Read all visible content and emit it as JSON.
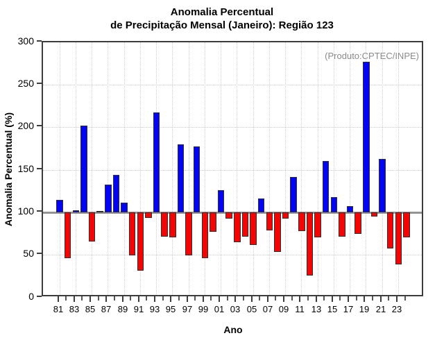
{
  "title": {
    "line1": "Anomalia Percentual",
    "line2": "de Precipitação Mensal (Janeiro): Região 123"
  },
  "annotation": "(Produto:CPTEC/INPE)",
  "chart_data": {
    "type": "bar",
    "title": "Anomalia Percentual de Precipitação Mensal (Janeiro): Região 123",
    "xlabel": "Ano",
    "ylabel": "Anomalia Percentual (%)",
    "ylim": [
      0,
      300
    ],
    "yticks": [
      0,
      50,
      100,
      150,
      200,
      250,
      300
    ],
    "baseline": 100,
    "grid": "dotted",
    "legend": "none",
    "years": [
      1981,
      1982,
      1983,
      1984,
      1985,
      1986,
      1987,
      1988,
      1989,
      1990,
      1991,
      1992,
      1993,
      1994,
      1995,
      1996,
      1997,
      1998,
      1999,
      2000,
      2001,
      2002,
      2003,
      2004,
      2005,
      2006,
      2007,
      2008,
      2009,
      2010,
      2011,
      2012,
      2013,
      2014,
      2015,
      2016,
      2017,
      2018,
      2019,
      2020,
      2021,
      2022,
      2023,
      2024
    ],
    "values": [
      115,
      46,
      103,
      202,
      66,
      102,
      133,
      144,
      112,
      50,
      32,
      94,
      218,
      72,
      71,
      180,
      50,
      178,
      46,
      77,
      126,
      93,
      65,
      72,
      62,
      117,
      79,
      54,
      93,
      142,
      78,
      26,
      71,
      161,
      118,
      72,
      108,
      75,
      277,
      95,
      163,
      58,
      39,
      71
    ],
    "xtick_labels": [
      "81",
      "83",
      "85",
      "87",
      "89",
      "91",
      "93",
      "95",
      "97",
      "99",
      "01",
      "03",
      "05",
      "07",
      "09",
      "11",
      "13",
      "15",
      "17",
      "19",
      "21",
      "23"
    ],
    "colors": {
      "above_baseline": "#0404f5",
      "below_baseline": "#f50404",
      "bar_outline": "#303030",
      "baseline": "#949494",
      "frame": "#3c3c3c",
      "grid": "#c9c9c9",
      "annotation_text": "#8a8a8a",
      "text": "#000000"
    }
  }
}
